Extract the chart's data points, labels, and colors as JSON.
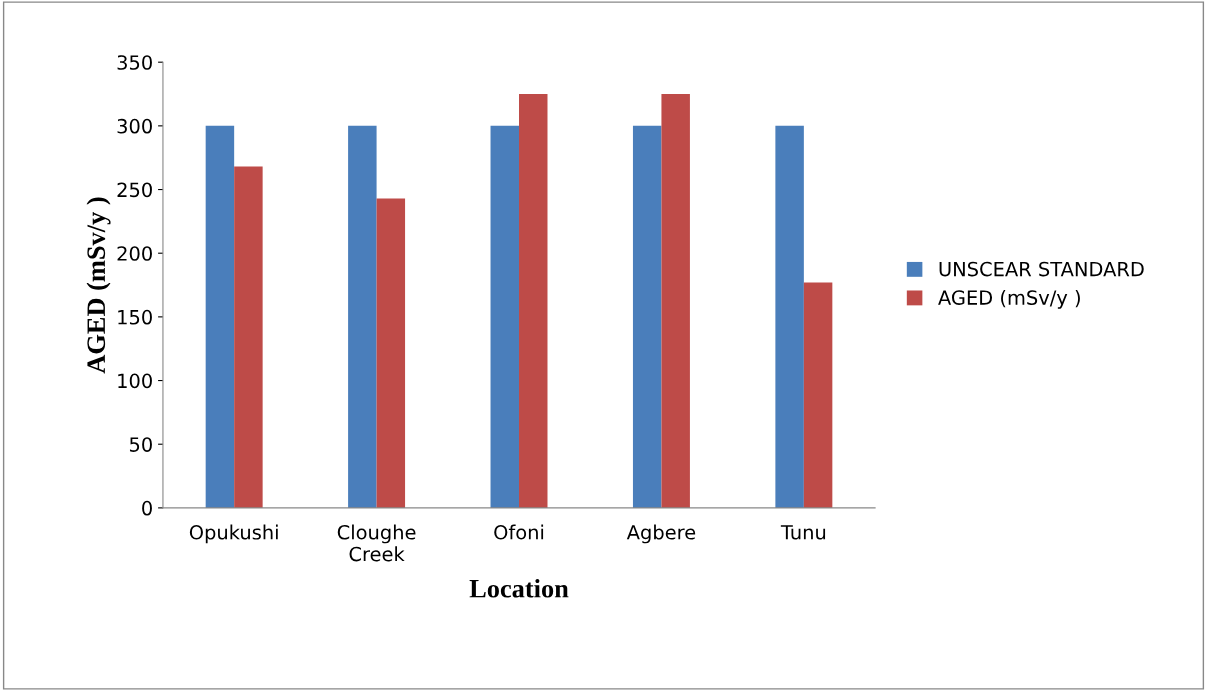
{
  "chart_data": {
    "type": "bar",
    "xlabel": "Location",
    "ylabel": "AGED (mSv/y )",
    "categories": [
      "Opukushi",
      "Cloughe\nCreek",
      "Ofoni",
      "Agbere",
      "Tunu"
    ],
    "series": [
      {
        "name": "UNSCEAR STANDARD",
        "color": "#4a7ebb",
        "values": [
          300,
          300,
          300,
          300,
          300
        ]
      },
      {
        "name": "AGED (mSv/y )",
        "color": "#be4b48",
        "values": [
          268,
          243,
          325,
          325,
          177
        ]
      }
    ],
    "ylim": [
      0,
      350
    ],
    "yticks": [
      0,
      50,
      100,
      150,
      200,
      250,
      300,
      350
    ],
    "grid": false,
    "legend": "right"
  }
}
